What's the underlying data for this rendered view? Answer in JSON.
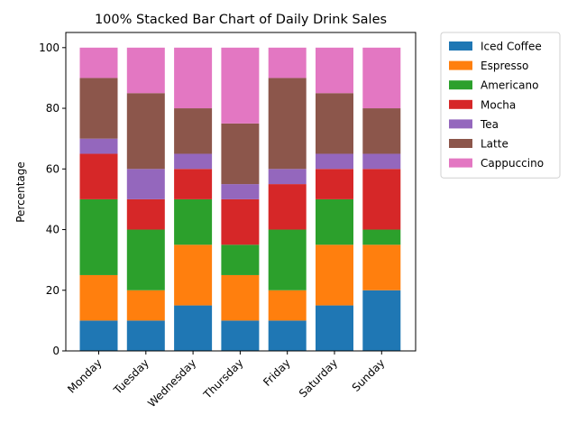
{
  "chart_data": {
    "type": "bar",
    "stacked": true,
    "title": "100% Stacked Bar Chart of Daily Drink Sales",
    "xlabel": "",
    "ylabel": "Percentage",
    "ylim": [
      0,
      105
    ],
    "yticks": [
      0,
      20,
      40,
      60,
      80,
      100
    ],
    "categories": [
      "Monday",
      "Tuesday",
      "Wednesday",
      "Thursday",
      "Friday",
      "Saturday",
      "Sunday"
    ],
    "legend_position": "outside-right-top",
    "grid": false,
    "series": [
      {
        "name": "Iced Coffee",
        "color": "#1f77b4",
        "values": [
          10,
          10,
          15,
          10,
          10,
          15,
          20
        ]
      },
      {
        "name": "Espresso",
        "color": "#ff7f0e",
        "values": [
          15,
          10,
          20,
          15,
          10,
          20,
          15
        ]
      },
      {
        "name": "Americano",
        "color": "#2ca02c",
        "values": [
          25,
          20,
          15,
          10,
          20,
          15,
          5
        ]
      },
      {
        "name": "Mocha",
        "color": "#d62728",
        "values": [
          15,
          10,
          10,
          15,
          15,
          10,
          20
        ]
      },
      {
        "name": "Tea",
        "color": "#9467bd",
        "values": [
          5,
          10,
          5,
          5,
          5,
          5,
          5
        ]
      },
      {
        "name": "Latte",
        "color": "#8c564b",
        "values": [
          20,
          25,
          15,
          20,
          30,
          20,
          15
        ]
      },
      {
        "name": "Cappuccino",
        "color": "#e377c2",
        "values": [
          10,
          15,
          20,
          25,
          10,
          15,
          20
        ]
      }
    ]
  }
}
